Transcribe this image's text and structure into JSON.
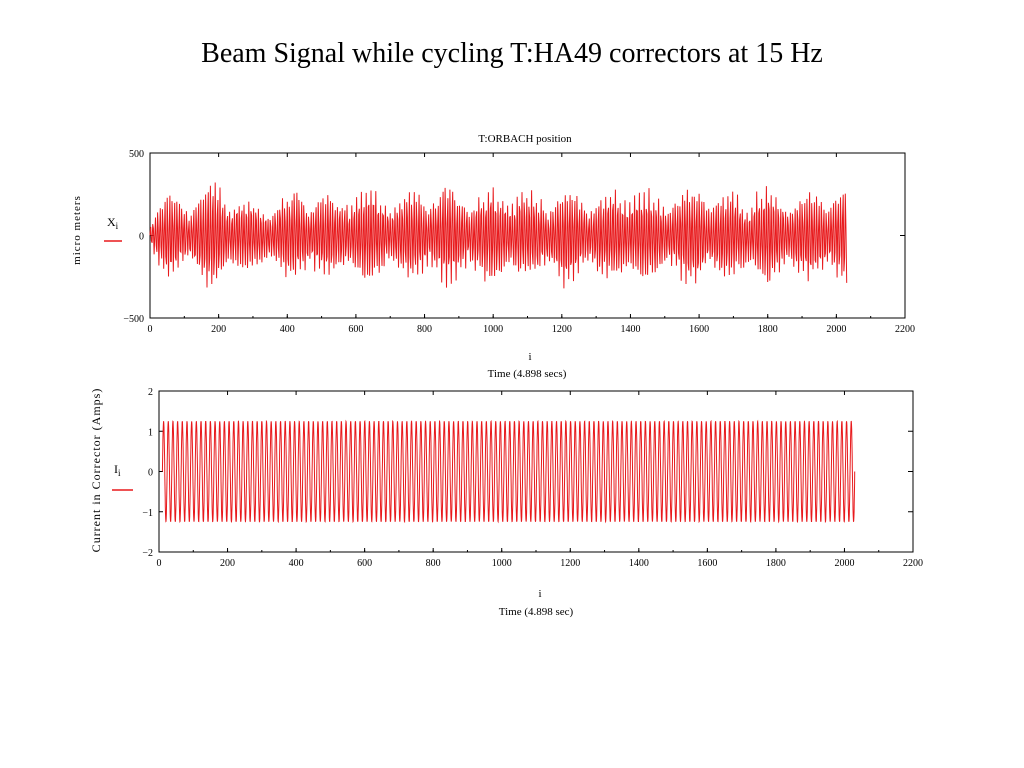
{
  "slide": {
    "title": "Beam Signal while cycling T:HA49 correctors at 15 Hz"
  },
  "colors": {
    "series": "#e8191c",
    "axis": "#000000",
    "background": "#ffffff"
  },
  "chart_data": [
    {
      "type": "line",
      "title": "T:ORBACH position",
      "ylabel": "micro meters",
      "xlabel": "i",
      "xlabel2": "Time (4.898 secs)",
      "series_label_main": "X",
      "series_label_sub": "i",
      "xlim": [
        0,
        2200
      ],
      "ylim": [
        -500,
        500
      ],
      "xticks": [
        0,
        200,
        400,
        600,
        800,
        1000,
        1200,
        1400,
        1600,
        1800,
        2000,
        2200
      ],
      "yticks": [
        -500,
        0,
        500
      ],
      "grid": false,
      "series": [
        {
          "name": "X",
          "x_range": [
            0,
            2030
          ],
          "description_note": "",
          "envelope_sample": {
            "x": [
              0,
              50,
              100,
              150,
              200,
              250,
              300,
              350,
              400,
              450,
              500,
              550,
              600,
              650,
              700,
              750,
              800,
              850,
              900,
              950,
              1000,
              1050,
              1100,
              1150,
              1200,
              1250,
              1300,
              1350,
              1400,
              1450,
              1500,
              1550,
              1600,
              1650,
              1700,
              1750,
              1800,
              1850,
              1900,
              1950,
              2000,
              2030
            ],
            "amplitude": [
              120,
              260,
              220,
              300,
              320,
              250,
              200,
              220,
              260,
              300,
              250,
              230,
              310,
              280,
              250,
              260,
              290,
              300,
              270,
              260,
              280,
              300,
              260,
              250,
              310,
              270,
              240,
              280,
              300,
              260,
              250,
              280,
              310,
              270,
              260,
              280,
              300,
              250,
              260,
              280,
              290,
              280
            ]
          }
        }
      ]
    },
    {
      "type": "line",
      "title": "",
      "ylabel": "Current in Corrector (Amps)",
      "xlabel": "i",
      "xlabel2": "Time (4.898 sec)",
      "series_label_main": "I",
      "series_label_sub": "i",
      "xlim": [
        0,
        2200
      ],
      "ylim": [
        -2,
        2
      ],
      "xticks": [
        0,
        200,
        400,
        600,
        800,
        1000,
        1200,
        1400,
        1600,
        1800,
        2000,
        2200
      ],
      "yticks": [
        -2,
        -1,
        0,
        1,
        2
      ],
      "grid": false,
      "series": [
        {
          "name": "I",
          "x_range": [
            10,
            2030
          ],
          "amplitude": 1.25,
          "cycles": 148
        }
      ]
    }
  ]
}
